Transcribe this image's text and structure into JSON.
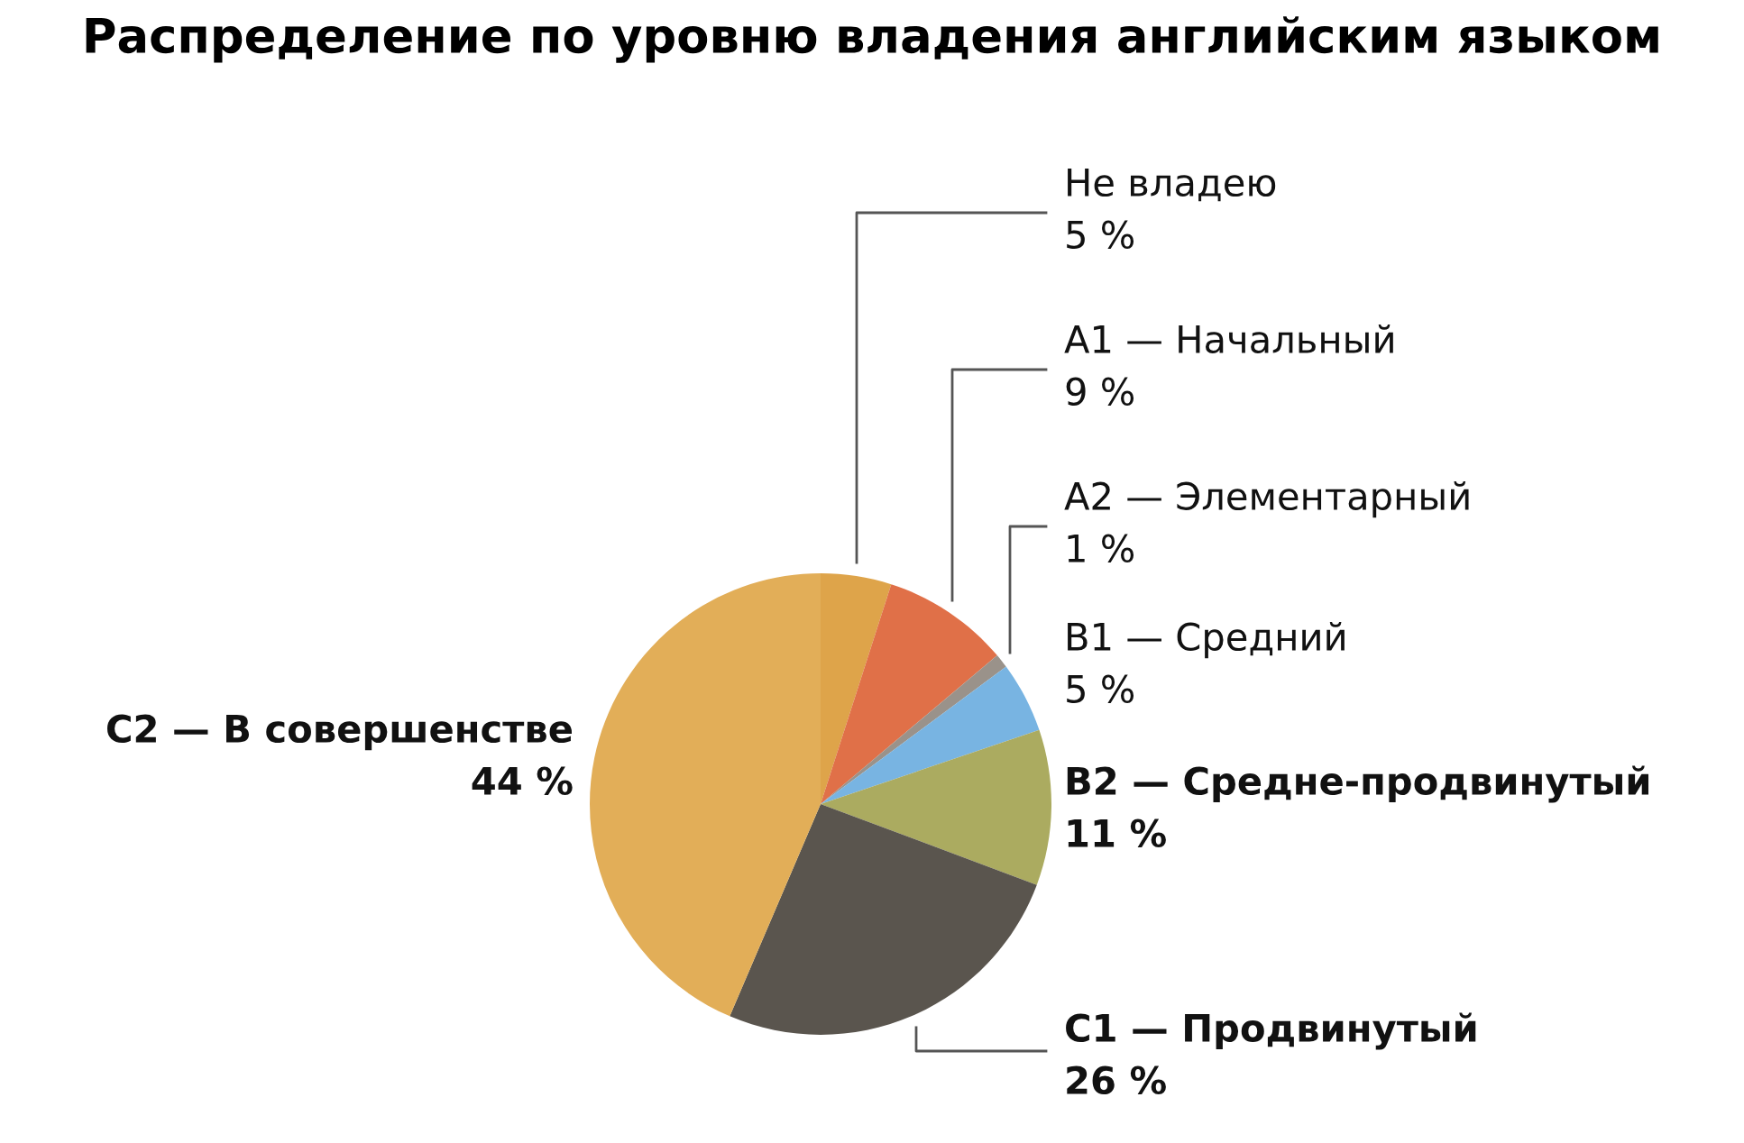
{
  "chart_data": {
    "type": "pie",
    "title": "Распределение по уровню владения английским языком",
    "categories": [
      "Не владею",
      "A1 — Начальный",
      "A2 — Элементарный",
      "B1 — Средний",
      "B2 — Средне-продвинутый",
      "C1 — Продвинутый",
      "C2 — В совершенстве"
    ],
    "values": [
      5,
      9,
      1,
      5,
      11,
      26,
      44
    ],
    "colors": [
      "#dea44a",
      "#e07048",
      "#9a928a",
      "#78b4e2",
      "#abab60",
      "#5a554e",
      "#e2ae58"
    ],
    "value_labels": [
      "5 %",
      "9 %",
      "1 %",
      "5 %",
      "11 %",
      "26 %",
      "44 %"
    ],
    "legend": false
  }
}
